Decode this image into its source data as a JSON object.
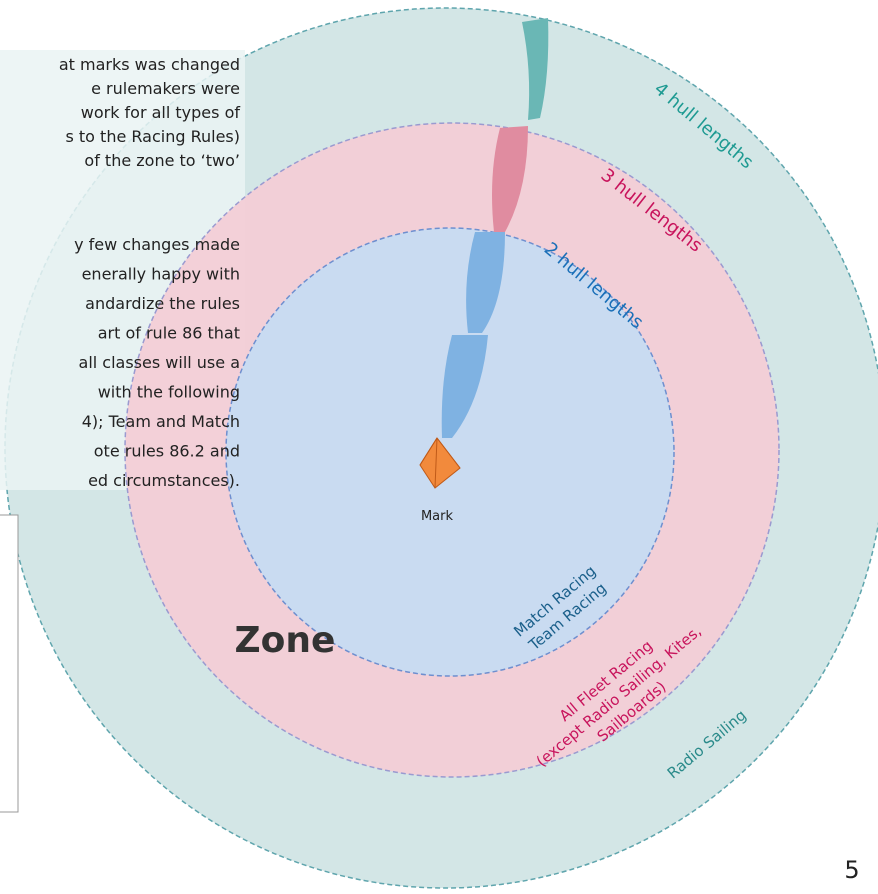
{
  "paragraph_a": [
    "at marks was changed",
    "e rulemakers were",
    "work for all types of",
    "s to the Racing Rules)",
    "of the zone to ‘two’"
  ],
  "paragraph_b": [
    "y few changes made",
    "enerally happy with",
    "andardize the rules",
    "art of rule 86 that",
    "all classes will use a",
    "with the following",
    "4); Team and Match",
    "ote rules 86.2 and",
    "ed circumstances)."
  ],
  "diagram": {
    "ring_labels": {
      "four": "4 hull lengths",
      "three": "3 hull lengths",
      "two": "2 hull lengths"
    },
    "mark": "Mark",
    "zone": "Zone",
    "inner_labels": [
      "Match Racing",
      "Team Racing"
    ],
    "middle_labels": [
      "All Fleet Racing",
      "(except Radio Sailing, Kites,",
      "Sailboards)"
    ],
    "outer_label": "Radio Sailing"
  },
  "page_number": "5"
}
